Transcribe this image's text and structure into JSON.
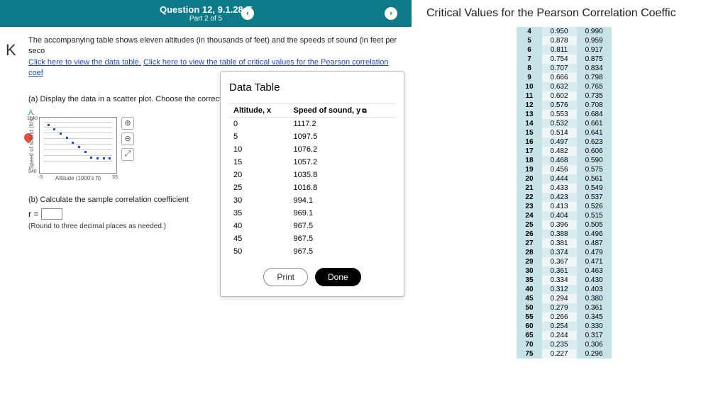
{
  "header": {
    "question": "Question 12, 9.1.28-T",
    "part": "Part 2 of 5"
  },
  "intro": {
    "text": "The accompanying table shows eleven altitudes (in thousands of feet) and the speeds of sound (in feet per seco",
    "link1": "Click here to view the data table.",
    "link2": "Click here to view the table of critical values for the Pearson correlation coef"
  },
  "partA": {
    "label": "(a) Display the data in a scatter plot. Choose the correct graph below."
  },
  "optA": "A.",
  "plot": {
    "ylabel": "Speed of sound (ft/s)",
    "xlabel": "Altitude (1000's ft)",
    "ymin_label": "940",
    "ymax_label": "1140",
    "xmin_label": "-5",
    "xmax_label": "55"
  },
  "partB": {
    "label": "(b) Calculate the sample correlation coefficient",
    "eq_left": "r =",
    "round": "(Round to three decimal places as needed.)"
  },
  "dataPopup": {
    "title": "Data Table",
    "col1": "Altitude, x",
    "col2": "Speed of sound, y",
    "rows": [
      {
        "x": "0",
        "y": "1117.2"
      },
      {
        "x": "5",
        "y": "1097.5"
      },
      {
        "x": "10",
        "y": "1076.2"
      },
      {
        "x": "15",
        "y": "1057.2"
      },
      {
        "x": "20",
        "y": "1035.8"
      },
      {
        "x": "25",
        "y": "1016.8"
      },
      {
        "x": "30",
        "y": "994.1"
      },
      {
        "x": "35",
        "y": "969.1"
      },
      {
        "x": "40",
        "y": "967.5"
      },
      {
        "x": "45",
        "y": "967.5"
      },
      {
        "x": "50",
        "y": "967.5"
      }
    ],
    "print": "Print",
    "done": "Done"
  },
  "cv": {
    "title": "Critical Values for the Pearson Correlation Coeffic",
    "rows": [
      {
        "n": "4",
        "a": "0.950",
        "b": "0.990"
      },
      {
        "n": "5",
        "a": "0.878",
        "b": "0.959"
      },
      {
        "n": "6",
        "a": "0.811",
        "b": "0.917"
      },
      {
        "n": "7",
        "a": "0.754",
        "b": "0.875"
      },
      {
        "n": "8",
        "a": "0.707",
        "b": "0.834"
      },
      {
        "n": "9",
        "a": "0.666",
        "b": "0.798"
      },
      {
        "n": "10",
        "a": "0.632",
        "b": "0.765"
      },
      {
        "n": "11",
        "a": "0.602",
        "b": "0.735"
      },
      {
        "n": "12",
        "a": "0.576",
        "b": "0.708"
      },
      {
        "n": "13",
        "a": "0.553",
        "b": "0.684"
      },
      {
        "n": "14",
        "a": "0.532",
        "b": "0.661"
      },
      {
        "n": "15",
        "a": "0.514",
        "b": "0.641"
      },
      {
        "n": "16",
        "a": "0.497",
        "b": "0.623"
      },
      {
        "n": "17",
        "a": "0.482",
        "b": "0.606"
      },
      {
        "n": "18",
        "a": "0.468",
        "b": "0.590"
      },
      {
        "n": "19",
        "a": "0.456",
        "b": "0.575"
      },
      {
        "n": "20",
        "a": "0.444",
        "b": "0.561"
      },
      {
        "n": "21",
        "a": "0.433",
        "b": "0.549"
      },
      {
        "n": "22",
        "a": "0.423",
        "b": "0.537"
      },
      {
        "n": "23",
        "a": "0.413",
        "b": "0.526"
      },
      {
        "n": "24",
        "a": "0.404",
        "b": "0.515"
      },
      {
        "n": "25",
        "a": "0.396",
        "b": "0.505"
      },
      {
        "n": "26",
        "a": "0.388",
        "b": "0.496"
      },
      {
        "n": "27",
        "a": "0.381",
        "b": "0.487"
      },
      {
        "n": "28",
        "a": "0.374",
        "b": "0.479"
      },
      {
        "n": "29",
        "a": "0.367",
        "b": "0.471"
      },
      {
        "n": "30",
        "a": "0.361",
        "b": "0.463"
      },
      {
        "n": "35",
        "a": "0.334",
        "b": "0.430"
      },
      {
        "n": "40",
        "a": "0.312",
        "b": "0.403"
      },
      {
        "n": "45",
        "a": "0.294",
        "b": "0.380"
      },
      {
        "n": "50",
        "a": "0.279",
        "b": "0.361"
      },
      {
        "n": "55",
        "a": "0.266",
        "b": "0.345"
      },
      {
        "n": "60",
        "a": "0.254",
        "b": "0.330"
      },
      {
        "n": "65",
        "a": "0.244",
        "b": "0.317"
      },
      {
        "n": "70",
        "a": "0.235",
        "b": "0.306"
      },
      {
        "n": "75",
        "a": "0.227",
        "b": "0.296"
      }
    ]
  }
}
